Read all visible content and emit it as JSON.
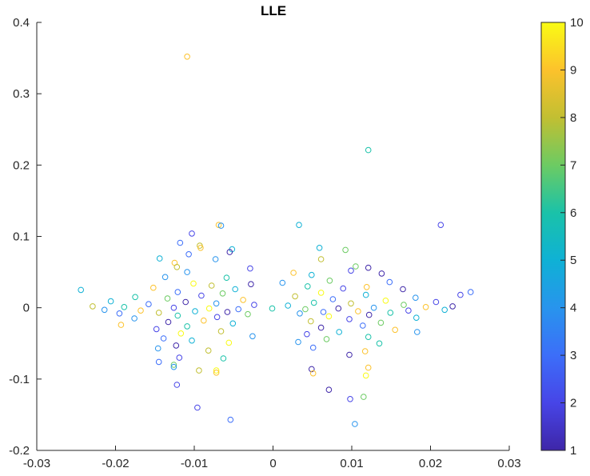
{
  "chart_data": {
    "type": "scatter",
    "title": "LLE",
    "xlabel": "",
    "ylabel": "",
    "xlim": [
      -0.03,
      0.03
    ],
    "ylim": [
      -0.2,
      0.4
    ],
    "x_ticks": [
      "-0.03",
      "-0.02",
      "-0.01",
      "0",
      "0.01",
      "0.02",
      "0.03"
    ],
    "y_ticks": [
      "-0.2",
      "-0.1",
      "0",
      "0.1",
      "0.2",
      "0.3",
      "0.4"
    ],
    "grid": false,
    "marker": "open-circle",
    "colorbar": {
      "colormap": "parula",
      "range": [
        1,
        10
      ],
      "ticks": [
        "1",
        "2",
        "3",
        "4",
        "5",
        "6",
        "7",
        "8",
        "9",
        "10"
      ]
    },
    "points": [
      {
        "x": -0.0109,
        "y": 0.352,
        "c": 9
      },
      {
        "x": 0.0121,
        "y": 0.221,
        "c": 6
      },
      {
        "x": 0.0213,
        "y": 0.116,
        "c": 2
      },
      {
        "x": -0.0069,
        "y": 0.116,
        "c": 9
      },
      {
        "x": -0.0066,
        "y": 0.115,
        "c": 4
      },
      {
        "x": 0.0033,
        "y": 0.116,
        "c": 5
      },
      {
        "x": -0.0103,
        "y": 0.104,
        "c": 2
      },
      {
        "x": -0.0118,
        "y": 0.091,
        "c": 3
      },
      {
        "x": -0.0093,
        "y": 0.087,
        "c": 8
      },
      {
        "x": -0.0092,
        "y": 0.084,
        "c": 9
      },
      {
        "x": -0.0052,
        "y": 0.082,
        "c": 5
      },
      {
        "x": 0.0059,
        "y": 0.084,
        "c": 5
      },
      {
        "x": 0.0092,
        "y": 0.081,
        "c": 7
      },
      {
        "x": -0.0107,
        "y": 0.075,
        "c": 3
      },
      {
        "x": -0.0055,
        "y": 0.078,
        "c": 1
      },
      {
        "x": -0.0073,
        "y": 0.068,
        "c": 4
      },
      {
        "x": -0.0144,
        "y": 0.069,
        "c": 5
      },
      {
        "x": 0.0061,
        "y": 0.068,
        "c": 8
      },
      {
        "x": -0.0125,
        "y": 0.063,
        "c": 9
      },
      {
        "x": -0.0122,
        "y": 0.057,
        "c": 8
      },
      {
        "x": 0.0105,
        "y": 0.058,
        "c": 7
      },
      {
        "x": 0.0121,
        "y": 0.056,
        "c": 1
      },
      {
        "x": -0.0029,
        "y": 0.055,
        "c": 2
      },
      {
        "x": 0.0138,
        "y": 0.048,
        "c": 1
      },
      {
        "x": -0.0109,
        "y": 0.05,
        "c": 4
      },
      {
        "x": 0.0026,
        "y": 0.049,
        "c": 9
      },
      {
        "x": 0.0049,
        "y": 0.046,
        "c": 5
      },
      {
        "x": 0.0099,
        "y": 0.052,
        "c": 2
      },
      {
        "x": -0.0059,
        "y": 0.042,
        "c": 6
      },
      {
        "x": -0.0137,
        "y": 0.043,
        "c": 4
      },
      {
        "x": 0.0012,
        "y": 0.035,
        "c": 4
      },
      {
        "x": 0.0072,
        "y": 0.038,
        "c": 7
      },
      {
        "x": 0.0148,
        "y": 0.036,
        "c": 3
      },
      {
        "x": -0.0028,
        "y": 0.033,
        "c": 1
      },
      {
        "x": -0.0101,
        "y": 0.034,
        "c": 10
      },
      {
        "x": 0.0119,
        "y": 0.029,
        "c": 9
      },
      {
        "x": -0.0078,
        "y": 0.031,
        "c": 8
      },
      {
        "x": 0.0044,
        "y": 0.03,
        "c": 6
      },
      {
        "x": -0.0152,
        "y": 0.028,
        "c": 9
      },
      {
        "x": 0.0089,
        "y": 0.027,
        "c": 2
      },
      {
        "x": -0.0048,
        "y": 0.026,
        "c": 5
      },
      {
        "x": 0.0165,
        "y": 0.026,
        "c": 1
      },
      {
        "x": -0.0244,
        "y": 0.025,
        "c": 5
      },
      {
        "x": 0.0251,
        "y": 0.022,
        "c": 3
      },
      {
        "x": 0.0238,
        "y": 0.018,
        "c": 2
      },
      {
        "x": -0.0121,
        "y": 0.022,
        "c": 3
      },
      {
        "x": 0.0061,
        "y": 0.021,
        "c": 10
      },
      {
        "x": -0.0064,
        "y": 0.02,
        "c": 7
      },
      {
        "x": 0.0118,
        "y": 0.018,
        "c": 5
      },
      {
        "x": -0.0091,
        "y": 0.017,
        "c": 2
      },
      {
        "x": 0.0028,
        "y": 0.016,
        "c": 8
      },
      {
        "x": -0.0175,
        "y": 0.015,
        "c": 6
      },
      {
        "x": 0.0181,
        "y": 0.014,
        "c": 4
      },
      {
        "x": -0.0134,
        "y": 0.013,
        "c": 7
      },
      {
        "x": 0.0076,
        "y": 0.012,
        "c": 3
      },
      {
        "x": -0.0038,
        "y": 0.011,
        "c": 9
      },
      {
        "x": 0.0143,
        "y": 0.01,
        "c": 10
      },
      {
        "x": -0.0206,
        "y": 0.009,
        "c": 5
      },
      {
        "x": 0.0207,
        "y": 0.008,
        "c": 2
      },
      {
        "x": -0.0111,
        "y": 0.008,
        "c": 1
      },
      {
        "x": 0.0052,
        "y": 0.007,
        "c": 6
      },
      {
        "x": -0.0072,
        "y": 0.006,
        "c": 4
      },
      {
        "x": 0.0099,
        "y": 0.006,
        "c": 8
      },
      {
        "x": -0.0158,
        "y": 0.005,
        "c": 3
      },
      {
        "x": 0.0166,
        "y": 0.004,
        "c": 7
      },
      {
        "x": -0.0024,
        "y": 0.004,
        "c": 2
      },
      {
        "x": 0.0019,
        "y": 0.003,
        "c": 5
      },
      {
        "x": -0.0229,
        "y": 0.002,
        "c": 8
      },
      {
        "x": 0.0228,
        "y": 0.002,
        "c": 1
      },
      {
        "x": -0.0189,
        "y": 0.001,
        "c": 6
      },
      {
        "x": 0.0194,
        "y": 0.001,
        "c": 9
      },
      {
        "x": -0.0126,
        "y": 0.0,
        "c": 2
      },
      {
        "x": 0.0128,
        "y": 0.0,
        "c": 4
      },
      {
        "x": -0.0081,
        "y": -0.001,
        "c": 10
      },
      {
        "x": 0.0083,
        "y": -0.001,
        "c": 1
      },
      {
        "x": -0.0044,
        "y": -0.002,
        "c": 3
      },
      {
        "x": 0.0041,
        "y": -0.002,
        "c": 7
      },
      {
        "x": -0.0001,
        "y": -0.001,
        "c": 6
      },
      {
        "x": -0.0214,
        "y": -0.003,
        "c": 4
      },
      {
        "x": 0.0218,
        "y": -0.003,
        "c": 5
      },
      {
        "x": -0.0168,
        "y": -0.004,
        "c": 9
      },
      {
        "x": 0.0172,
        "y": -0.004,
        "c": 2
      },
      {
        "x": -0.0099,
        "y": -0.005,
        "c": 5
      },
      {
        "x": 0.0108,
        "y": -0.005,
        "c": 9
      },
      {
        "x": -0.0058,
        "y": -0.006,
        "c": 1
      },
      {
        "x": 0.0064,
        "y": -0.006,
        "c": 3
      },
      {
        "x": -0.0145,
        "y": -0.007,
        "c": 8
      },
      {
        "x": 0.0149,
        "y": -0.007,
        "c": 6
      },
      {
        "x": -0.0195,
        "y": -0.008,
        "c": 3
      },
      {
        "x": 0.0034,
        "y": -0.008,
        "c": 4
      },
      {
        "x": -0.0032,
        "y": -0.009,
        "c": 7
      },
      {
        "x": 0.0122,
        "y": -0.01,
        "c": 1
      },
      {
        "x": -0.0121,
        "y": -0.011,
        "c": 6
      },
      {
        "x": 0.0071,
        "y": -0.012,
        "c": 10
      },
      {
        "x": -0.0071,
        "y": -0.013,
        "c": 2
      },
      {
        "x": 0.0182,
        "y": -0.014,
        "c": 5
      },
      {
        "x": -0.0176,
        "y": -0.015,
        "c": 4
      },
      {
        "x": 0.0097,
        "y": -0.016,
        "c": 2
      },
      {
        "x": -0.0088,
        "y": -0.018,
        "c": 9
      },
      {
        "x": 0.0048,
        "y": -0.019,
        "c": 8
      },
      {
        "x": -0.0133,
        "y": -0.02,
        "c": 1
      },
      {
        "x": 0.0137,
        "y": -0.021,
        "c": 7
      },
      {
        "x": -0.0051,
        "y": -0.022,
        "c": 5
      },
      {
        "x": -0.0193,
        "y": -0.024,
        "c": 9
      },
      {
        "x": 0.0114,
        "y": -0.025,
        "c": 3
      },
      {
        "x": -0.0109,
        "y": -0.026,
        "c": 6
      },
      {
        "x": 0.0061,
        "y": -0.028,
        "c": 1
      },
      {
        "x": -0.0148,
        "y": -0.03,
        "c": 2
      },
      {
        "x": 0.0155,
        "y": -0.031,
        "c": 9
      },
      {
        "x": -0.0066,
        "y": -0.033,
        "c": 8
      },
      {
        "x": 0.0084,
        "y": -0.034,
        "c": 5
      },
      {
        "x": 0.0183,
        "y": -0.034,
        "c": 4
      },
      {
        "x": -0.0117,
        "y": -0.036,
        "c": 10
      },
      {
        "x": 0.0043,
        "y": -0.037,
        "c": 2
      },
      {
        "x": -0.0026,
        "y": -0.04,
        "c": 4
      },
      {
        "x": 0.0121,
        "y": -0.041,
        "c": 6
      },
      {
        "x": -0.0139,
        "y": -0.043,
        "c": 3
      },
      {
        "x": 0.0068,
        "y": -0.044,
        "c": 7
      },
      {
        "x": -0.0103,
        "y": -0.046,
        "c": 5
      },
      {
        "x": 0.0032,
        "y": -0.048,
        "c": 4
      },
      {
        "x": -0.0056,
        "y": -0.049,
        "c": 10
      },
      {
        "x": 0.0135,
        "y": -0.05,
        "c": 6
      },
      {
        "x": -0.0123,
        "y": -0.053,
        "c": 1
      },
      {
        "x": 0.0051,
        "y": -0.056,
        "c": 3
      },
      {
        "x": -0.0146,
        "y": -0.057,
        "c": 4
      },
      {
        "x": -0.0082,
        "y": -0.06,
        "c": 8
      },
      {
        "x": 0.0117,
        "y": -0.061,
        "c": 9
      },
      {
        "x": 0.0097,
        "y": -0.066,
        "c": 1
      },
      {
        "x": -0.0119,
        "y": -0.07,
        "c": 2
      },
      {
        "x": -0.0063,
        "y": -0.071,
        "c": 6
      },
      {
        "x": -0.0145,
        "y": -0.076,
        "c": 3
      },
      {
        "x": -0.0126,
        "y": -0.08,
        "c": 7
      },
      {
        "x": -0.0126,
        "y": -0.083,
        "c": 4
      },
      {
        "x": 0.0049,
        "y": -0.086,
        "c": 1
      },
      {
        "x": 0.0121,
        "y": -0.084,
        "c": 9
      },
      {
        "x": -0.0094,
        "y": -0.088,
        "c": 8
      },
      {
        "x": -0.0072,
        "y": -0.088,
        "c": 10
      },
      {
        "x": 0.0051,
        "y": -0.092,
        "c": 9
      },
      {
        "x": -0.0072,
        "y": -0.091,
        "c": 9
      },
      {
        "x": 0.0118,
        "y": -0.095,
        "c": 10
      },
      {
        "x": -0.0122,
        "y": -0.108,
        "c": 2
      },
      {
        "x": 0.0071,
        "y": -0.115,
        "c": 1
      },
      {
        "x": 0.0098,
        "y": -0.128,
        "c": 2
      },
      {
        "x": 0.0115,
        "y": -0.125,
        "c": 7
      },
      {
        "x": -0.0096,
        "y": -0.14,
        "c": 2
      },
      {
        "x": -0.0054,
        "y": -0.157,
        "c": 3
      },
      {
        "x": 0.0104,
        "y": -0.163,
        "c": 4
      }
    ]
  }
}
